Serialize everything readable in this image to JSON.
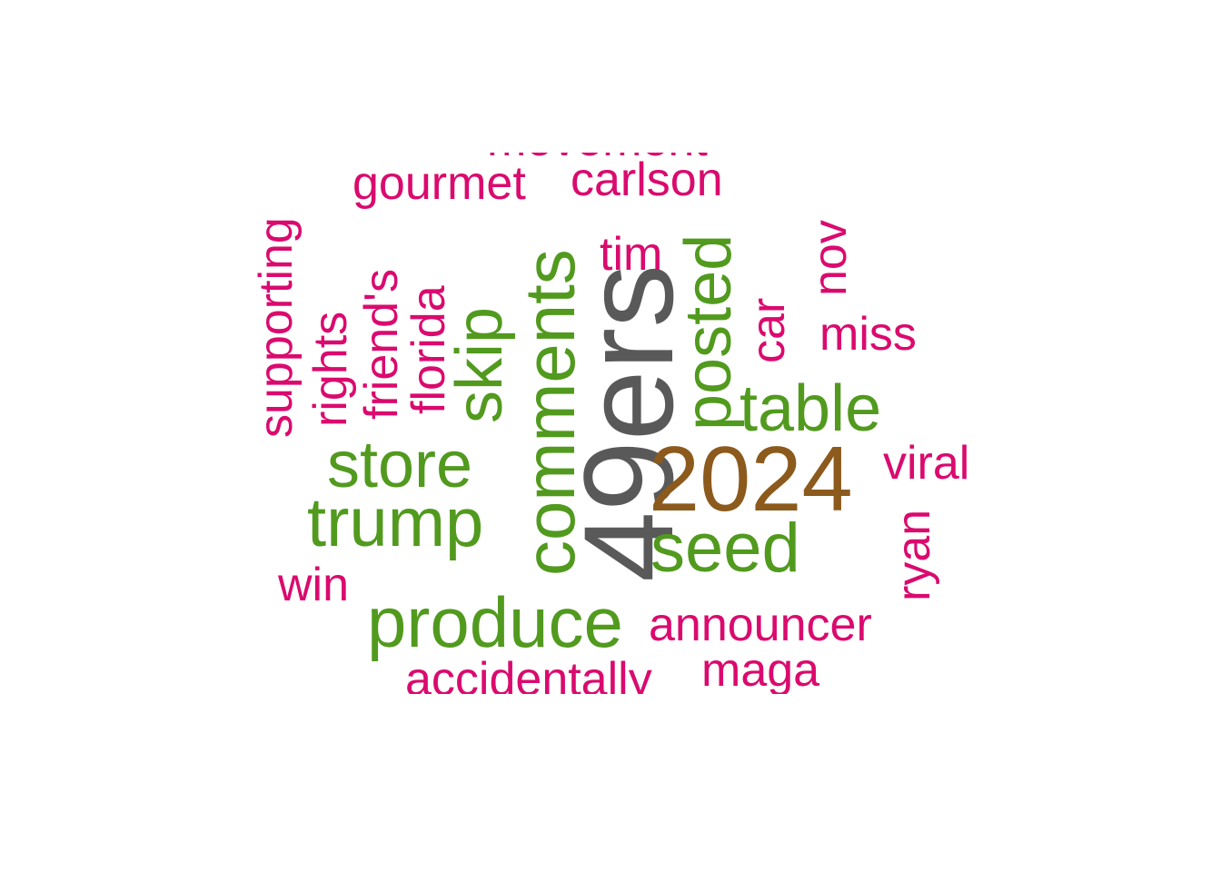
{
  "wordcloud": {
    "colors": {
      "top": "#595959",
      "second": "#8b5a1c",
      "mid": "#519a1e",
      "low": "#da0a6e"
    },
    "words": {
      "w49ers": "49ers",
      "w2024": "2024",
      "comments": "comments",
      "produce": "produce",
      "trump": "trump",
      "seed": "seed",
      "store": "store",
      "table": "table",
      "posted": "posted",
      "skip": "skip",
      "gourmet": "gourmet",
      "carlson": "carlson",
      "movement": "movement",
      "tim": "tim",
      "miss": "miss",
      "viral": "viral",
      "announcer": "announcer",
      "maga": "maga",
      "accidentally": "accidentally",
      "win": "win",
      "supporting": "supporting",
      "rights": "rights",
      "friends": "friend's",
      "florida": "florida",
      "car": "car",
      "nov": "nov",
      "ryan": "ryan"
    }
  }
}
